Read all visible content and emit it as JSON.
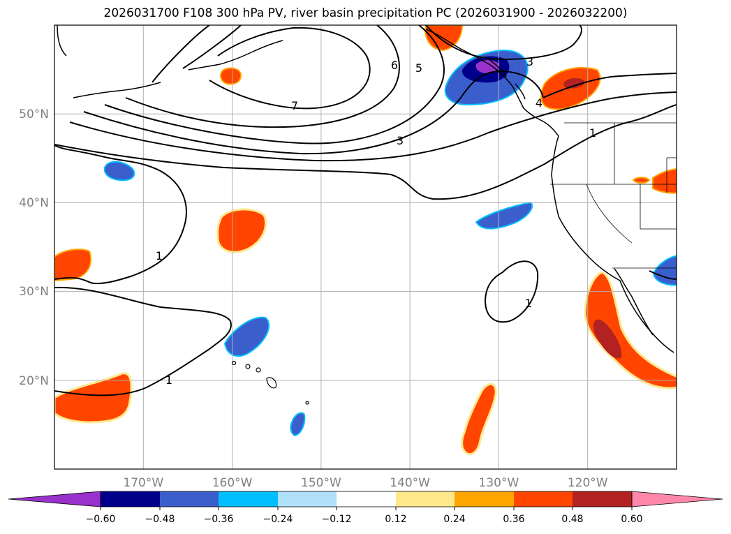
{
  "title": "2026031700 F108 300 hPa PV, river basin precipitation PC (2026031900 - 2026032200)",
  "map": {
    "projection": "PlateCarree",
    "lon_range": [
      -180,
      -110
    ],
    "lat_range": [
      10,
      60
    ],
    "gridlines": true,
    "lon_ticks": [
      {
        "lon": -170,
        "label": "170°W"
      },
      {
        "lon": -160,
        "label": "160°W"
      },
      {
        "lon": -150,
        "label": "150°W"
      },
      {
        "lon": -140,
        "label": "140°W"
      },
      {
        "lon": -130,
        "label": "130°W"
      },
      {
        "lon": -120,
        "label": "120°W"
      }
    ],
    "lat_ticks": [
      {
        "lat": 50,
        "label": "50°N"
      },
      {
        "lat": 40,
        "label": "40°N"
      },
      {
        "lat": 30,
        "label": "30°N"
      },
      {
        "lat": 20,
        "label": "20°N"
      }
    ]
  },
  "pv_contours": {
    "levels": [
      "1",
      "3",
      "4",
      "5",
      "6",
      "7"
    ],
    "line_color": "#000000"
  },
  "colorbar": {
    "orientation": "horizontal",
    "extend": "both",
    "ticks": [
      "−0.60",
      "−0.48",
      "−0.36",
      "−0.24",
      "−0.12",
      "0.12",
      "0.24",
      "0.36",
      "0.48",
      "0.60"
    ],
    "colors": [
      "#9932cc",
      "#00008b",
      "#3a5fcd",
      "#00bfff",
      "#afe1fa",
      "#ffffff",
      "#ffe88c",
      "#ffa500",
      "#ff4500",
      "#b22222",
      "#ff88aa"
    ]
  }
}
